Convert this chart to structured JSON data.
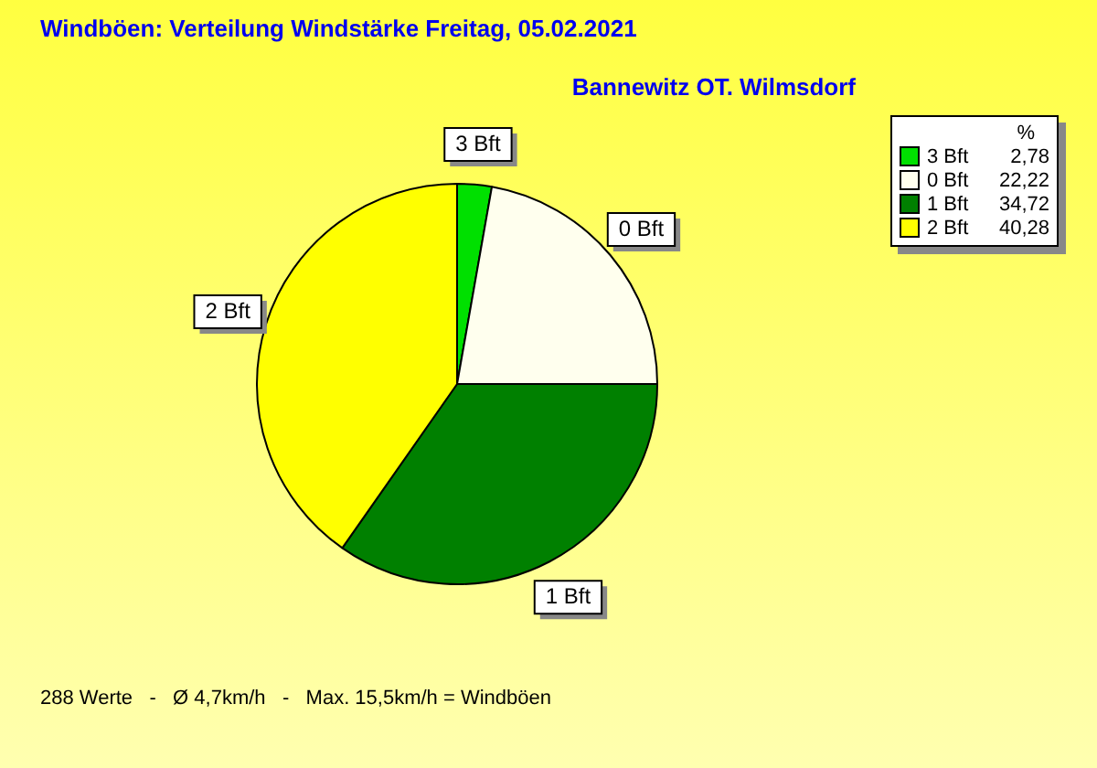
{
  "chart_data": {
    "type": "pie",
    "title": "Windböen: Verteilung Windstärke  Freitag, 05.02.2021",
    "subtitle": "Bannewitz OT. Wilmsdorf",
    "categories": [
      "3 Bft",
      "0 Bft",
      "1 Bft",
      "2 Bft"
    ],
    "values": [
      2.78,
      22.22,
      34.72,
      40.28
    ],
    "value_labels": [
      "2,78",
      "22,22",
      "34,72",
      "40,28"
    ],
    "colors": [
      "#00e000",
      "#ffffee",
      "#008000",
      "#ffff00"
    ],
    "legend": "top right",
    "legend_title": "%",
    "annotations": [
      "288 Werte   -   Ø 4,7km/h   -   Max. 15,5km/h = Windböen"
    ]
  }
}
